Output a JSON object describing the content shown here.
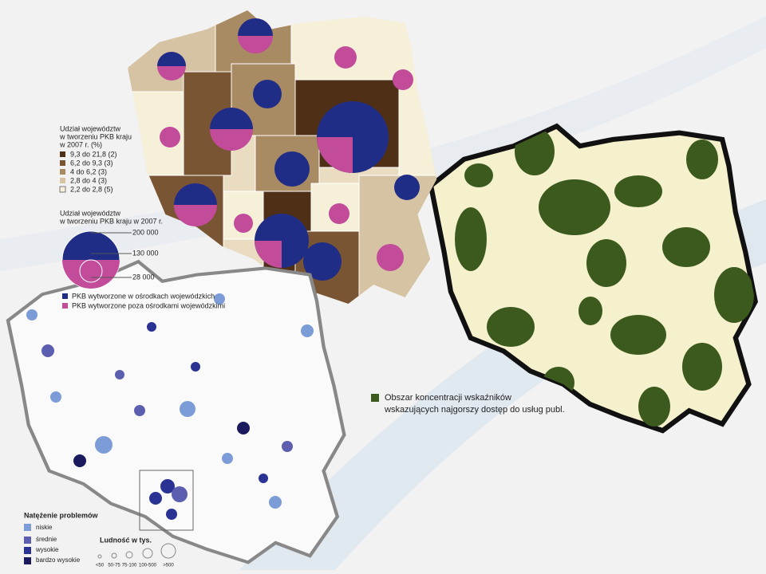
{
  "gdp_share_legend": {
    "title": [
      "Udział województw",
      "w tworzeniu PKB kraju",
      "w 2007 r. (%)"
    ],
    "items": [
      "9,3 do 21,8 (2)",
      "6,2 do 9,3 (3)",
      "4 do 6,2 (3)",
      "2,8 do 4 (3)",
      "2,2 do 2,8 (5)"
    ]
  },
  "gdp_pie_legend": {
    "title": [
      "Udział województw",
      "w tworzeniu PKB kraju w 2007 r."
    ],
    "sizes": [
      "200 000",
      "130 000",
      "28 000"
    ],
    "items": [
      "PKB wytworzone w ośrodkach wojewódzkich",
      "PKB wytworzone poza ośrodkami wojewódzkimi"
    ]
  },
  "services_legend": {
    "lines": [
      "Obszar koncentracji wskaźników",
      "wskazujących najgorszy dostęp do usług publ."
    ]
  },
  "problems_legend": {
    "title": "Natężenie problemów",
    "items": [
      "niskie",
      "średnie",
      "wysokie",
      "bardzo wysokie"
    ]
  },
  "population_legend": {
    "title": "Ludność w tys.",
    "items": [
      "<50",
      "50-75",
      "75-100",
      "100-500",
      ">500"
    ]
  }
}
